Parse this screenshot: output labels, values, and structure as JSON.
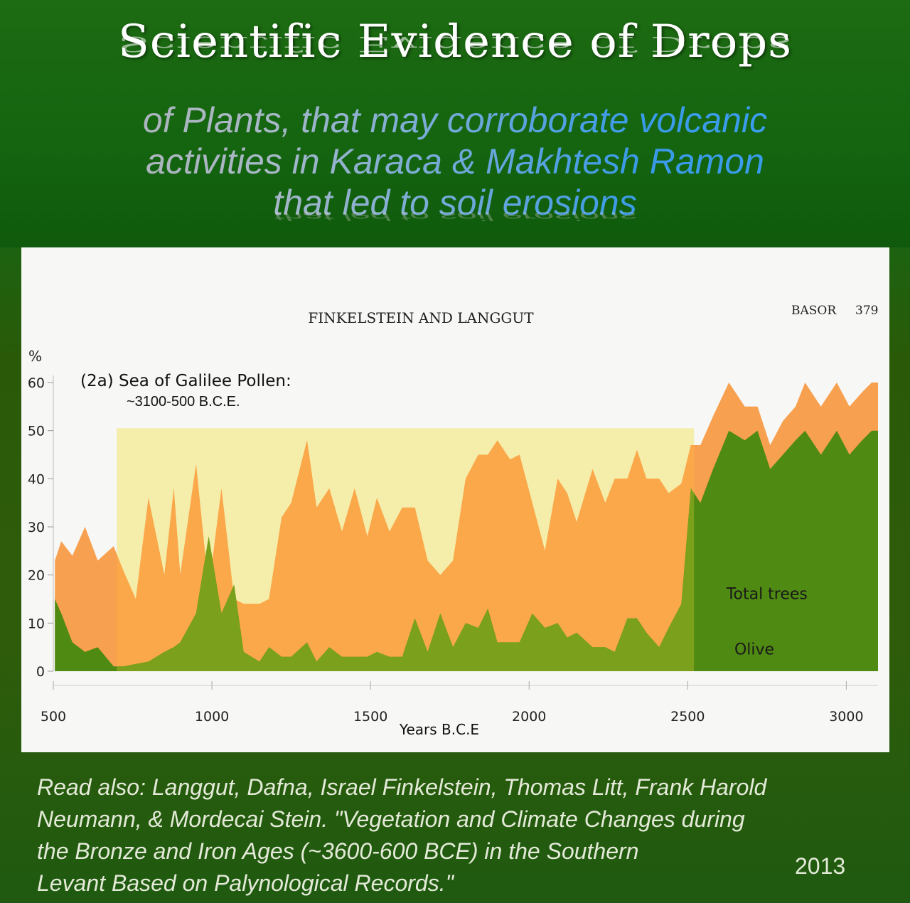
{
  "header": {
    "title": "Scientific Evidence of Drops",
    "subtitle_lines": [
      "of Plants, that may corroborate volcanic",
      "activities in Karaca & Makhtesh Ramon",
      "that led to soil erosions"
    ]
  },
  "figure": {
    "running_head": "FINKELSTEIN AND LANGGUT",
    "journal": "BASOR",
    "page": "379",
    "panel_title": "(2a) Sea of Galilee Pollen:",
    "panel_subtitle": "~3100-500 B.C.E.",
    "y_unit": "%"
  },
  "chart_data": {
    "type": "area",
    "xlabel": "Years B.C.E",
    "ylabel": "%",
    "xlim": [
      500,
      3100
    ],
    "ylim": [
      0,
      60
    ],
    "x_ticks": [
      500,
      1000,
      1500,
      2000,
      2500,
      3000
    ],
    "y_ticks": [
      0,
      10,
      20,
      30,
      40,
      50,
      60
    ],
    "highlight_band": {
      "x": [
        700,
        2520
      ],
      "y": [
        0,
        50.5
      ],
      "color": "#f4eeaa"
    },
    "series": [
      {
        "name": "Total trees",
        "color": "#f7a04f",
        "highlight_color": "#fba84b",
        "x": [
          505,
          525,
          560,
          600,
          640,
          690,
          720,
          760,
          800,
          850,
          880,
          900,
          950,
          990,
          1030,
          1070,
          1100,
          1150,
          1180,
          1220,
          1250,
          1300,
          1330,
          1370,
          1410,
          1450,
          1490,
          1520,
          1560,
          1600,
          1640,
          1680,
          1720,
          1760,
          1800,
          1840,
          1870,
          1900,
          1940,
          1970,
          2010,
          2050,
          2090,
          2120,
          2150,
          2200,
          2240,
          2270,
          2310,
          2340,
          2370,
          2410,
          2440,
          2480,
          2510,
          2540,
          2580,
          2630,
          2680,
          2720,
          2760,
          2800,
          2840,
          2870,
          2920,
          2970,
          3010,
          3050,
          3080,
          3100
        ],
        "values": [
          23,
          27,
          24,
          30,
          23,
          26,
          21,
          15,
          36,
          20,
          38,
          20,
          43,
          17,
          38,
          15,
          14,
          14,
          15,
          32,
          35,
          48,
          34,
          38,
          29,
          38,
          28,
          36,
          29,
          34,
          34,
          23,
          20,
          23,
          40,
          45,
          45,
          48,
          44,
          45,
          35,
          25,
          40,
          37,
          31,
          42,
          35,
          40,
          40,
          46,
          40,
          40,
          37,
          39,
          47,
          47,
          53,
          60,
          55,
          55,
          47,
          52,
          55,
          60,
          55,
          60,
          55,
          58,
          60,
          60
        ]
      },
      {
        "name": "Olive",
        "color": "#4f8a12",
        "highlight_color": "#7aa01c",
        "x": [
          505,
          525,
          560,
          600,
          640,
          690,
          720,
          760,
          800,
          850,
          880,
          900,
          950,
          990,
          1030,
          1070,
          1100,
          1150,
          1180,
          1220,
          1250,
          1300,
          1330,
          1370,
          1410,
          1450,
          1490,
          1520,
          1560,
          1600,
          1640,
          1680,
          1720,
          1760,
          1800,
          1840,
          1870,
          1900,
          1940,
          1970,
          2010,
          2050,
          2090,
          2120,
          2150,
          2200,
          2240,
          2270,
          2310,
          2340,
          2370,
          2410,
          2440,
          2480,
          2510,
          2540,
          2580,
          2630,
          2680,
          2720,
          2760,
          2800,
          2840,
          2870,
          2920,
          2970,
          3010,
          3050,
          3080,
          3100
        ],
        "values": [
          15,
          12,
          6,
          4,
          5,
          1,
          1,
          1.5,
          2,
          4,
          5,
          6,
          12,
          28,
          12,
          18,
          4,
          2,
          5,
          3,
          3,
          6,
          2,
          5,
          3,
          3,
          3,
          4,
          3,
          3,
          11,
          4,
          12,
          5,
          10,
          9,
          13,
          6,
          6,
          6,
          12,
          9,
          10,
          7,
          8,
          5,
          5,
          4,
          11,
          11,
          8,
          5,
          9,
          14,
          38,
          35,
          42,
          50,
          48,
          50,
          42,
          45,
          48,
          50,
          45,
          50,
          45,
          48,
          50,
          50
        ]
      }
    ],
    "labels": [
      {
        "text": "Total trees",
        "x": 2750,
        "y": 15
      },
      {
        "text": "Olive",
        "x": 2710,
        "y": 3.5
      }
    ]
  },
  "caption": {
    "lines": [
      "Read also: Langgut, Dafna, Israel Finkelstein, Thomas Litt, Frank Harold",
      "Neumann, & Mordecai Stein. \"Vegetation and Climate Changes during",
      "the Bronze and Iron Ages (~3600-600 BCE) in the Southern",
      "Levant Based on  Palynological Records.\""
    ],
    "year": "2013"
  }
}
